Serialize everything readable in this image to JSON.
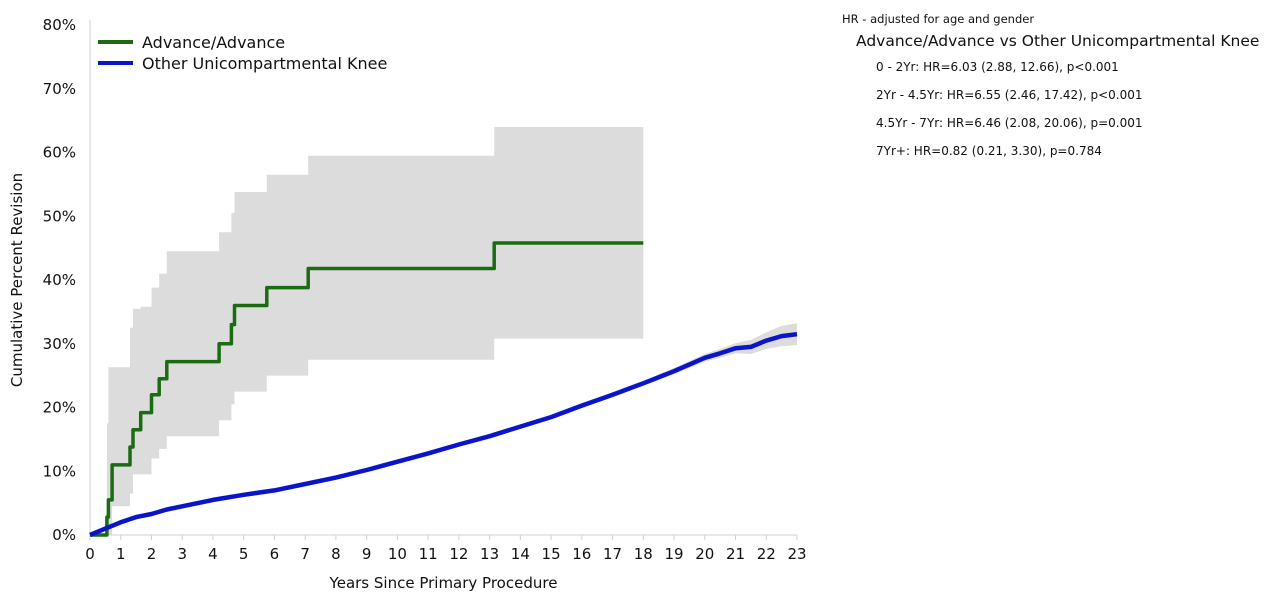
{
  "chart_data": {
    "type": "line",
    "title": "",
    "xlabel": "Years Since Primary Procedure",
    "ylabel": "Cumulative Percent Revision",
    "xlim": [
      0,
      23
    ],
    "ylim": [
      0,
      80
    ],
    "x_ticks": [
      "0",
      "1",
      "2",
      "3",
      "4",
      "5",
      "6",
      "7",
      "8",
      "9",
      "10",
      "11",
      "12",
      "13",
      "14",
      "15",
      "16",
      "17",
      "18",
      "19",
      "20",
      "21",
      "22",
      "23"
    ],
    "y_ticks": [
      "0%",
      "10%",
      "20%",
      "30%",
      "40%",
      "50%",
      "60%",
      "70%",
      "80%"
    ],
    "grid": false,
    "legend_position": "top-left",
    "series": [
      {
        "name": "Advance/Advance",
        "color": "#1a6b12",
        "line_style": "step",
        "x": [
          0,
          0.55,
          0.6,
          0.72,
          1.3,
          1.4,
          1.65,
          2.0,
          2.25,
          2.5,
          4.2,
          4.6,
          4.7,
          5.75,
          7.1,
          13.15,
          18.0
        ],
        "y": [
          0,
          2.8,
          5.5,
          11.0,
          13.8,
          16.5,
          19.2,
          22.0,
          24.5,
          27.2,
          30.0,
          33.0,
          36.0,
          38.8,
          41.8,
          45.8,
          45.8
        ],
        "ci_upper": [
          0,
          17.5,
          26.3,
          26.3,
          32.5,
          35.5,
          35.8,
          38.8,
          41.0,
          44.5,
          47.5,
          50.5,
          53.8,
          56.5,
          59.5,
          64.0,
          64.0
        ],
        "ci_lower": [
          0,
          0,
          0,
          4.5,
          6.5,
          9.5,
          9.5,
          12.0,
          13.5,
          15.5,
          18.0,
          20.5,
          22.5,
          25.0,
          27.5,
          30.8,
          30.8
        ]
      },
      {
        "name": "Other Unicompartmental Knee",
        "color": "#0a14c8",
        "line_style": "line",
        "x": [
          0,
          0.5,
          1,
          1.5,
          2,
          2.5,
          3,
          4,
          5,
          6,
          7,
          8,
          9,
          10,
          11,
          12,
          13,
          14,
          15,
          16,
          17,
          18,
          19,
          20,
          20.5,
          21,
          21.5,
          22,
          22.5,
          23
        ],
        "y": [
          0,
          1.0,
          2.0,
          2.8,
          3.3,
          4.0,
          4.5,
          5.5,
          6.3,
          7.0,
          8.0,
          9.0,
          10.2,
          11.5,
          12.8,
          14.2,
          15.5,
          17.0,
          18.5,
          20.3,
          22.0,
          23.8,
          25.7,
          27.8,
          28.5,
          29.3,
          29.5,
          30.5,
          31.2,
          31.5
        ],
        "ci_upper": [
          0,
          1.2,
          2.3,
          3.1,
          3.6,
          4.2,
          4.8,
          5.8,
          6.6,
          7.3,
          8.3,
          9.3,
          10.5,
          11.8,
          13.1,
          14.5,
          15.8,
          17.3,
          18.8,
          20.6,
          22.4,
          24.2,
          26.2,
          28.4,
          29.2,
          30.1,
          30.6,
          31.8,
          32.8,
          33.2
        ],
        "ci_lower": [
          0,
          0.8,
          1.7,
          2.5,
          3.0,
          3.7,
          4.2,
          5.2,
          6.0,
          6.7,
          7.7,
          8.7,
          9.9,
          11.2,
          12.5,
          13.9,
          15.2,
          16.7,
          18.2,
          20.0,
          21.6,
          23.4,
          25.2,
          27.2,
          27.8,
          28.5,
          28.4,
          29.2,
          29.6,
          29.8
        ]
      }
    ],
    "ci_color": "#dcdcdc"
  },
  "hr_panel": {
    "note": "HR - adjusted for age and gender",
    "title": "Advance/Advance vs Other Unicompartmental Knee",
    "rows": [
      "0 - 2Yr: HR=6.03 (2.88, 12.66), p<0.001",
      "2Yr - 4.5Yr: HR=6.55 (2.46, 17.42), p<0.001",
      "4.5Yr - 7Yr: HR=6.46 (2.08, 20.06), p=0.001",
      "7Yr+: HR=0.82 (0.21, 3.30), p=0.784"
    ]
  }
}
